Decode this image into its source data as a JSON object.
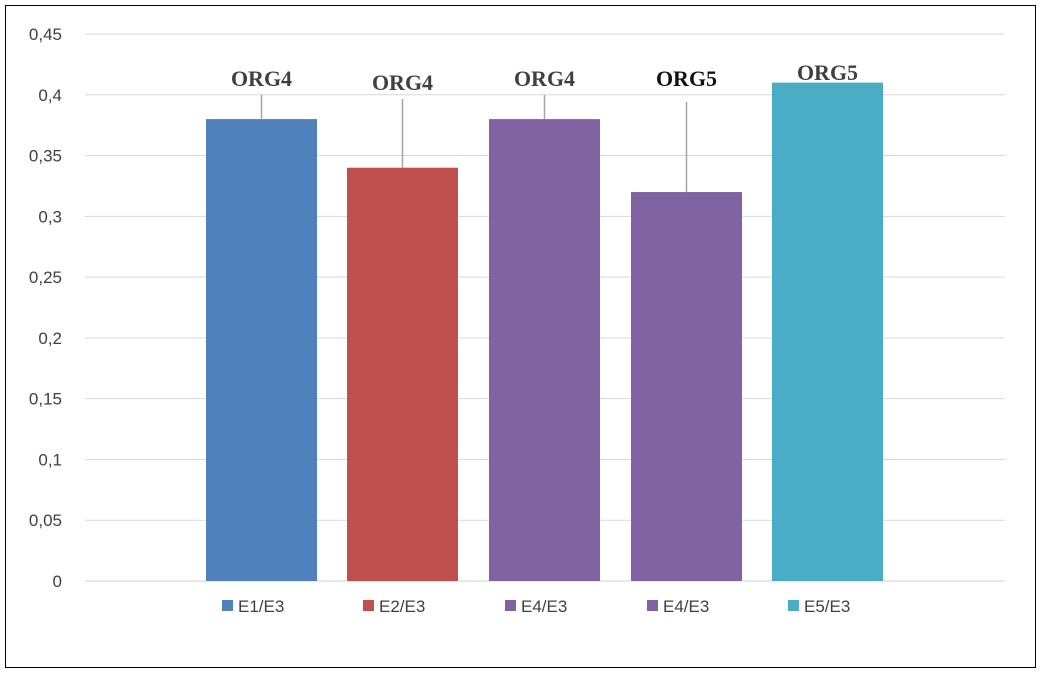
{
  "chart_data": {
    "type": "bar",
    "categories": [
      "E1/E3",
      "E2/E3",
      "E4/E3",
      "E4/E3",
      "E5/E3"
    ],
    "values": [
      0.38,
      0.34,
      0.38,
      0.32,
      0.41
    ],
    "data_labels": [
      "ORG4",
      "ORG4",
      "ORG4",
      "ORG5",
      "ORG5"
    ],
    "colors": [
      "#4F81BD",
      "#C0504D",
      "#8064A2",
      "#8064A2",
      "#4BACC6"
    ],
    "ylim": [
      0,
      0.45
    ],
    "yticks": [
      "0",
      "0,05",
      "0,1",
      "0,15",
      "0,2",
      "0,25",
      "0,3",
      "0,35",
      "0,4",
      "0,45"
    ],
    "grid": true,
    "legend_position": "bottom",
    "title": "",
    "xlabel": "",
    "ylabel": ""
  }
}
